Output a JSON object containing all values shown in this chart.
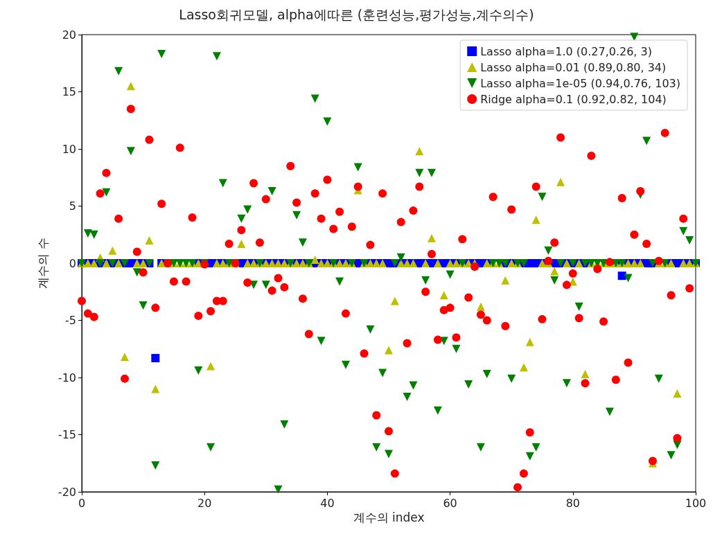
{
  "chart_data": {
    "type": "scatter",
    "title": "Lasso회귀모델, alpha에따른 (훈련성능,평가성능,계수의수)",
    "xlabel": "계수의 index",
    "ylabel": "계수의 수",
    "x": [
      0,
      1,
      2,
      3,
      4,
      5,
      6,
      7,
      8,
      9,
      10,
      11,
      12,
      13,
      14,
      15,
      16,
      17,
      18,
      19,
      20,
      21,
      22,
      23,
      24,
      25,
      26,
      27,
      28,
      29,
      30,
      31,
      32,
      33,
      34,
      35,
      36,
      37,
      38,
      39,
      40,
      41,
      42,
      43,
      44,
      45,
      46,
      47,
      48,
      49,
      50,
      51,
      52,
      53,
      54,
      55,
      56,
      57,
      58,
      59,
      60,
      61,
      62,
      63,
      64,
      65,
      66,
      67,
      68,
      69,
      70,
      71,
      72,
      73,
      74,
      75,
      76,
      77,
      78,
      79,
      80,
      81,
      82,
      83,
      84,
      85,
      86,
      87,
      88,
      89,
      90,
      91,
      92,
      93,
      94,
      95,
      96,
      97,
      98,
      99,
      100
    ],
    "series": [
      {
        "name": "Lasso alpha=1.0 (0.27,0.26, 3)",
        "color": "#0000ff",
        "marker": "square",
        "values": [
          0,
          0,
          0,
          0,
          0,
          0,
          0,
          0,
          0,
          0,
          0,
          0,
          -8.3,
          0,
          null,
          null,
          null,
          null,
          null,
          0,
          null,
          0,
          0,
          0,
          null,
          null,
          0,
          0,
          0,
          null,
          0,
          0,
          0,
          0,
          null,
          0,
          0,
          null,
          0,
          0,
          0,
          null,
          0,
          0,
          null,
          0,
          null,
          0,
          0,
          0,
          0,
          0,
          0,
          0,
          0,
          0,
          0,
          0,
          0,
          0,
          0,
          0,
          null,
          0,
          0,
          0,
          0,
          null,
          null,
          0,
          0,
          null,
          0,
          0,
          0,
          0,
          null,
          0,
          0,
          0,
          0,
          0,
          0,
          null,
          null,
          null,
          null,
          0,
          -1.1,
          0,
          0,
          0,
          0,
          0,
          null,
          null,
          0,
          0,
          0,
          0,
          0
        ]
      },
      {
        "name": "Lasso alpha=0.01 (0.89,0.80, 34)",
        "color": "#bfbf00",
        "marker": "triangle",
        "values": [
          0,
          0,
          0,
          0.5,
          0,
          1.1,
          0,
          -8.2,
          15.5,
          0,
          0,
          2.0,
          -11.0,
          0,
          0,
          0,
          0,
          0,
          0,
          0,
          null,
          -9.0,
          0,
          0,
          0,
          0,
          1.7,
          0,
          0,
          0,
          0,
          0,
          0,
          0,
          0,
          0,
          0,
          0,
          0.3,
          0,
          0,
          0,
          0,
          0,
          0,
          6.4,
          0,
          0,
          0,
          0,
          -7.6,
          -3.3,
          0,
          0,
          0,
          9.8,
          0,
          2.2,
          0,
          -2.8,
          0,
          0,
          0,
          0,
          0,
          -3.8,
          0,
          0,
          0,
          -1.5,
          0,
          0,
          -9.1,
          -6.9,
          3.8,
          0,
          0,
          -0.7,
          7.1,
          0,
          -1.6,
          0,
          -9.7,
          0,
          0,
          0,
          0,
          0,
          0,
          0,
          0,
          0,
          null,
          -17.5,
          0,
          0,
          0,
          -11.4,
          0,
          0,
          0
        ]
      },
      {
        "name": "Lasso alpha=1e-05 (0.94,0.76, 103)",
        "color": "#008000",
        "marker": "triangle_down",
        "values": [
          0,
          2.6,
          2.5,
          0,
          6.2,
          0,
          16.8,
          0,
          9.8,
          -0.8,
          -3.7,
          0,
          -17.7,
          18.3,
          0,
          0,
          0,
          0,
          0,
          -9.4,
          0,
          -16.1,
          18.1,
          7.0,
          0,
          0,
          3.9,
          4.7,
          -1.9,
          0,
          -1.9,
          6.3,
          -19.8,
          -14.1,
          0,
          4.2,
          1.8,
          0,
          14.4,
          -6.8,
          12.4,
          0,
          -1.6,
          -8.9,
          0,
          8.4,
          0,
          -5.8,
          -16.1,
          -9.6,
          -16.7,
          0,
          0.5,
          -11.7,
          -10.7,
          7.9,
          -1.5,
          7.9,
          -12.9,
          -6.8,
          -1.0,
          -7.5,
          0,
          -10.6,
          null,
          -16.1,
          -9.7,
          0,
          0,
          0,
          -10.1,
          0,
          0,
          -16.9,
          -16.1,
          5.8,
          1.1,
          -1.5,
          0,
          -10.5,
          0,
          -3.8,
          0,
          0,
          0,
          0,
          -13.0,
          0,
          0,
          -1.3,
          19.8,
          6.0,
          10.7,
          0,
          -10.1,
          0,
          -16.8,
          -15.9,
          2.8,
          2.0,
          0
        ]
      },
      {
        "name": "Ridge alpha=0.1 (0.92,0.82, 104)",
        "color": "#ff0000",
        "marker": "circle",
        "x": [
          0,
          1,
          2,
          3,
          4,
          6,
          7,
          8,
          9,
          10,
          11,
          12,
          13,
          14,
          15,
          16,
          17,
          18,
          19,
          20,
          21,
          22,
          23,
          24,
          25,
          26,
          27,
          28,
          29,
          30,
          31,
          32,
          33,
          34,
          35,
          36,
          37,
          38,
          39,
          40,
          41,
          42,
          43,
          44,
          45,
          46,
          47,
          48,
          49,
          50,
          51,
          52,
          53,
          54,
          55,
          56,
          57,
          58,
          59,
          60,
          61,
          62,
          63,
          64,
          65,
          66,
          67,
          69,
          70,
          71,
          72,
          73,
          74,
          75,
          76,
          77,
          78,
          79,
          80,
          81,
          82,
          83,
          84,
          85,
          86,
          87,
          88,
          89,
          90,
          91,
          92,
          93,
          94,
          95,
          96,
          97,
          98,
          99
        ],
        "values": [
          -3.3,
          -4.4,
          -4.7,
          6.1,
          7.9,
          3.9,
          -10.1,
          13.5,
          1.0,
          -0.8,
          10.8,
          -3.9,
          5.2,
          0,
          -1.6,
          10.1,
          -1.6,
          4.0,
          -4.6,
          -0.1,
          -4.2,
          -3.3,
          -3.3,
          1.7,
          0,
          2.9,
          -1.7,
          7.0,
          1.8,
          5.6,
          -2.4,
          -1.3,
          -2.1,
          8.5,
          5.3,
          -3.1,
          -6.2,
          6.1,
          3.9,
          7.3,
          3.0,
          4.5,
          -4.4,
          3.2,
          6.7,
          -7.9,
          1.6,
          -13.3,
          6.1,
          -14.7,
          -18.4,
          3.6,
          -7.0,
          4.6,
          6.7,
          -2.5,
          0.8,
          -6.7,
          -4.1,
          -3.9,
          -6.5,
          2.1,
          -3.0,
          -0.3,
          -4.5,
          -5.0,
          5.8,
          -5.5,
          4.7,
          -19.6,
          -18.4,
          -14.8,
          6.7,
          -4.9,
          0.2,
          1.8,
          11.0,
          -1.9,
          -0.9,
          -4.8,
          -10.5,
          9.4,
          -0.5,
          -5.1,
          0.1,
          -10.2,
          5.7,
          -8.7,
          2.5,
          6.3,
          1.7,
          -17.3,
          0.2,
          11.4,
          -2.8,
          -15.3,
          3.9,
          -2.2
        ]
      }
    ],
    "xlim": [
      0,
      100
    ],
    "xticks": [
      0,
      20,
      40,
      60,
      80,
      100
    ],
    "ylim": [
      -20,
      20
    ],
    "yticks": [
      -20,
      -15,
      -10,
      -5,
      0,
      5,
      10,
      15,
      20
    ],
    "grid": false,
    "legend": "top right"
  }
}
